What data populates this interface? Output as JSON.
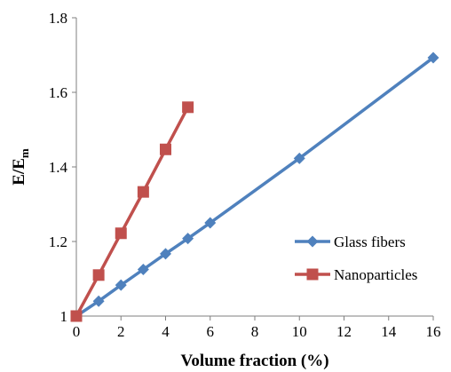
{
  "chart_data": {
    "type": "line",
    "xlabel": "Volume fraction (%)",
    "ylabel": {
      "main": "E/E",
      "sub": "m"
    },
    "xlim": [
      0,
      16
    ],
    "ylim": [
      1,
      1.8
    ],
    "xticks": [
      0,
      2,
      4,
      6,
      8,
      10,
      12,
      14,
      16
    ],
    "yticks": [
      1,
      1.2,
      1.4,
      1.6,
      1.8
    ],
    "xtick_labels": [
      "0",
      "2",
      "4",
      "6",
      "8",
      "10",
      "12",
      "14",
      "16"
    ],
    "ytick_labels": [
      "1",
      "1.2",
      "1.4",
      "1.6",
      "1.8"
    ],
    "grid": false,
    "legend_position": "bottom-right",
    "series": [
      {
        "name": "Glass fibers",
        "color": "#4f81bd",
        "marker": "diamond",
        "x": [
          0,
          1,
          2,
          3,
          4,
          5,
          6,
          10,
          16
        ],
        "y": [
          1.0,
          1.04,
          1.083,
          1.125,
          1.167,
          1.208,
          1.25,
          1.423,
          1.693
        ]
      },
      {
        "name": "Nanoparticles",
        "color": "#c0504d",
        "marker": "square",
        "x": [
          0,
          1,
          2,
          3,
          4,
          5
        ],
        "y": [
          1.0,
          1.11,
          1.222,
          1.333,
          1.447,
          1.56
        ]
      }
    ]
  }
}
